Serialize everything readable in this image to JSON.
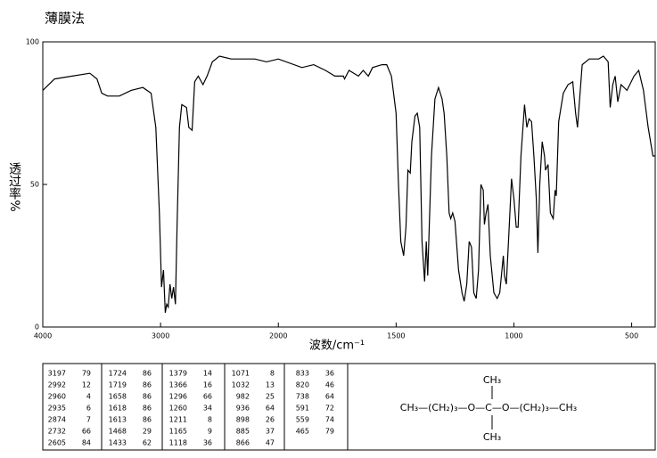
{
  "chart_data": {
    "type": "line",
    "title": "薄膜法",
    "xlabel": "波数/cm⁻¹",
    "ylabel": "透过率%",
    "xlim": [
      4000,
      400
    ],
    "ylim": [
      0,
      100
    ],
    "x_scale_change": 2000,
    "xticks": [
      4000,
      3000,
      2000,
      1500,
      1000,
      500
    ],
    "yticks": [
      0,
      50,
      100
    ],
    "series": [
      {
        "color": "#000000",
        "x": [
          4000,
          3900,
          3750,
          3600,
          3540,
          3500,
          3450,
          3350,
          3250,
          3150,
          3080,
          3040,
          3010,
          2992,
          2975,
          2960,
          2948,
          2935,
          2920,
          2905,
          2890,
          2874,
          2860,
          2840,
          2820,
          2780,
          2760,
          2732,
          2710,
          2680,
          2640,
          2605,
          2560,
          2500,
          2400,
          2300,
          2200,
          2100,
          2000,
          1900,
          1850,
          1800,
          1760,
          1724,
          1719,
          1700,
          1660,
          1640,
          1618,
          1600,
          1560,
          1540,
          1520,
          1500,
          1490,
          1480,
          1468,
          1458,
          1450,
          1440,
          1433,
          1420,
          1410,
          1400,
          1390,
          1379,
          1372,
          1366,
          1350,
          1335,
          1320,
          1305,
          1296,
          1285,
          1275,
          1268,
          1260,
          1250,
          1235,
          1220,
          1211,
          1200,
          1190,
          1180,
          1170,
          1160,
          1150,
          1140,
          1130,
          1125,
          1118,
          1110,
          1100,
          1085,
          1071,
          1060,
          1045,
          1040,
          1032,
          1020,
          1010,
          1000,
          990,
          982,
          970,
          955,
          945,
          936,
          925,
          915,
          905,
          898,
          890,
          880,
          870,
          866,
          855,
          845,
          833,
          825,
          820,
          810,
          790,
          770,
          750,
          738,
          730,
          710,
          680,
          640,
          620,
          600,
          591,
          580,
          570,
          559,
          545,
          520,
          490,
          470,
          450,
          430,
          410,
          400
        ],
        "values": [
          83,
          87,
          88,
          89,
          87,
          82,
          81,
          81,
          83,
          84,
          82,
          70,
          40,
          14,
          20,
          5,
          8,
          7,
          15,
          10,
          14,
          8,
          35,
          70,
          78,
          77,
          70,
          69,
          86,
          88,
          85,
          88,
          93,
          95,
          94,
          94,
          94,
          93,
          94,
          91,
          92,
          90,
          88,
          88,
          87,
          90,
          88,
          90,
          88,
          91,
          92,
          92,
          88,
          75,
          50,
          30,
          25,
          35,
          55,
          54,
          65,
          74,
          75,
          70,
          30,
          16,
          30,
          18,
          60,
          80,
          84,
          80,
          75,
          60,
          40,
          38,
          40,
          37,
          20,
          12,
          9,
          15,
          30,
          28,
          12,
          10,
          20,
          50,
          48,
          36,
          40,
          43,
          25,
          12,
          10,
          12,
          25,
          18,
          15,
          35,
          52,
          45,
          35,
          35,
          60,
          78,
          70,
          73,
          72,
          60,
          45,
          26,
          50,
          65,
          60,
          55,
          57,
          40,
          38,
          48,
          46,
          72,
          82,
          85,
          86,
          75,
          70,
          92,
          94,
          94,
          95,
          93,
          77,
          85,
          88,
          79,
          85,
          83,
          88,
          90,
          83,
          70,
          60,
          60
        ]
      }
    ]
  },
  "table": {
    "columns": [
      {
        "wavenumbers": [
          3197,
          2992,
          2960,
          2935,
          2874,
          2732,
          2605
        ],
        "values": [
          79,
          12,
          4,
          6,
          7,
          66,
          84
        ]
      },
      {
        "wavenumbers": [
          1724,
          1719,
          1658,
          1618,
          1613,
          1468,
          1433
        ],
        "values": [
          86,
          86,
          86,
          86,
          86,
          29,
          62
        ]
      },
      {
        "wavenumbers": [
          1379,
          1366,
          1296,
          1260,
          1211,
          1165,
          1118
        ],
        "values": [
          14,
          16,
          66,
          34,
          8,
          9,
          36
        ]
      },
      {
        "wavenumbers": [
          1071,
          1032,
          982,
          936,
          898,
          885,
          866
        ],
        "values": [
          8,
          13,
          25,
          64,
          26,
          37,
          47
        ]
      },
      {
        "wavenumbers": [
          833,
          820,
          738,
          591,
          559,
          465
        ],
        "values": [
          36,
          46,
          64,
          72,
          74,
          79
        ]
      }
    ]
  },
  "structure": {
    "top": "CH₃",
    "main": "CH₃—(CH₂)₃—O—C—O—(CH₂)₃—CH₃",
    "bottom": "CH₃"
  }
}
